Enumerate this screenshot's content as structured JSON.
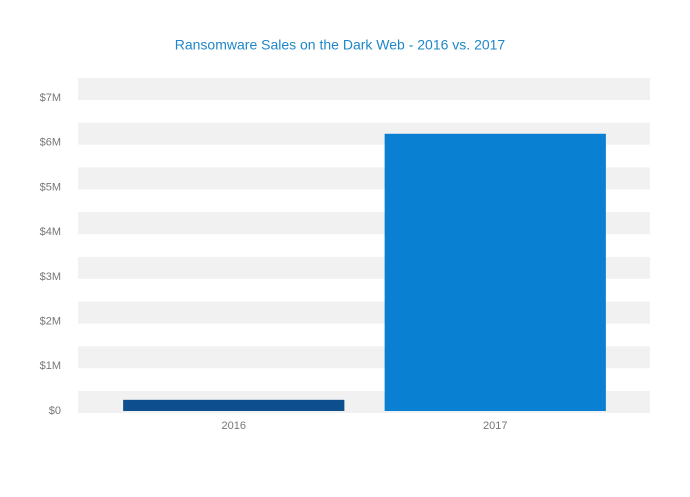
{
  "chart_data": {
    "type": "bar",
    "title": "Ransomware Sales on the Dark Web - 2016 vs. 2017",
    "categories": [
      "2016",
      "2017"
    ],
    "values": [
      250000,
      6200000
    ],
    "colors": [
      "#0d4f8e",
      "#0a80d2"
    ],
    "ylim": [
      0,
      7000000
    ],
    "yticks": [
      {
        "value": 0,
        "label": "$0"
      },
      {
        "value": 1000000,
        "label": "$1M"
      },
      {
        "value": 2000000,
        "label": "$2M"
      },
      {
        "value": 3000000,
        "label": "$3M"
      },
      {
        "value": 4000000,
        "label": "$4M"
      },
      {
        "value": 5000000,
        "label": "$5M"
      },
      {
        "value": 6000000,
        "label": "$6M"
      },
      {
        "value": 7000000,
        "label": "$7M"
      }
    ],
    "grid": true
  }
}
